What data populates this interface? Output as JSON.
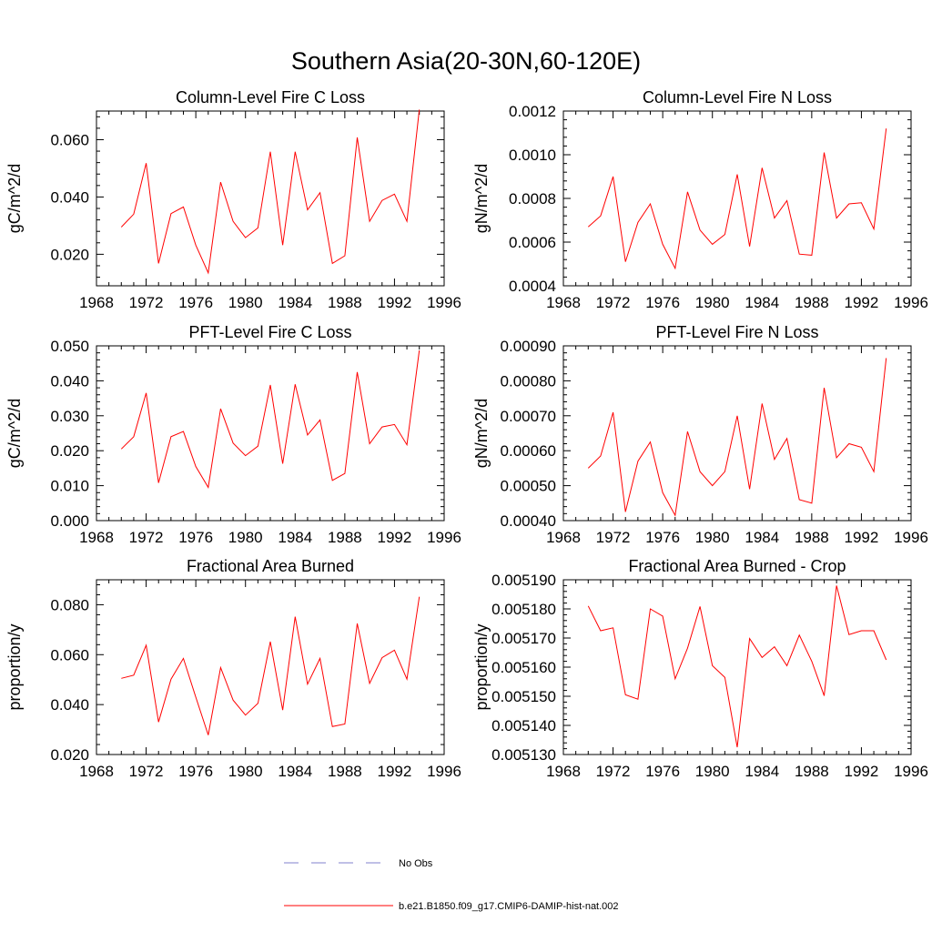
{
  "figure": {
    "title": "Southern Asia(20-30N,60-120E)",
    "colors": {
      "model_line": "#ff0000",
      "obs_line": "#8080cc",
      "axes": "#000000"
    }
  },
  "legend": {
    "entries": [
      {
        "label": "No Obs",
        "style": "dashed",
        "color": "#8080cc"
      },
      {
        "label": "b.e21.B1850.f09_g17.CMIP6-DAMIP-hist-nat.002",
        "style": "solid",
        "color": "#ff0000"
      }
    ]
  },
  "chart_data": [
    {
      "type": "line",
      "title": "Column-Level Fire C Loss",
      "ylabel": "gC/m^2/d",
      "xlim": [
        1968,
        1996
      ],
      "ylim": [
        0.009,
        0.07
      ],
      "xticks": [
        1968,
        1972,
        1976,
        1980,
        1984,
        1988,
        1992,
        1996
      ],
      "yticks": [
        0.02,
        0.04,
        0.06
      ],
      "ytick_labels": [
        "0.020",
        "0.040",
        "0.060"
      ],
      "grid": false,
      "x": [
        1970,
        1971,
        1972,
        1973,
        1974,
        1975,
        1976,
        1977,
        1978,
        1979,
        1980,
        1981,
        1982,
        1983,
        1984,
        1985,
        1986,
        1987,
        1988,
        1989,
        1990,
        1991,
        1992,
        1993,
        1994
      ],
      "series": [
        {
          "values": [
            0.0295,
            0.034,
            0.0518,
            0.0168,
            0.0342,
            0.0365,
            0.0232,
            0.0135,
            0.0452,
            0.0315,
            0.0258,
            0.0292,
            0.0558,
            0.0232,
            0.0558,
            0.0355,
            0.0415,
            0.0168,
            0.0195,
            0.0608,
            0.0315,
            0.0388,
            0.041,
            0.0315,
            0.0705
          ]
        }
      ]
    },
    {
      "type": "line",
      "title": "Column-Level Fire N Loss",
      "ylabel": "gN/m^2/d",
      "xlim": [
        1968,
        1996
      ],
      "ylim": [
        0.0004,
        0.0012
      ],
      "xticks": [
        1968,
        1972,
        1976,
        1980,
        1984,
        1988,
        1992,
        1996
      ],
      "yticks": [
        0.0004,
        0.0006,
        0.0008,
        0.001,
        0.0012
      ],
      "ytick_labels": [
        "0.0004",
        "0.0006",
        "0.0008",
        "0.0010",
        "0.0012"
      ],
      "grid": false,
      "x": [
        1970,
        1971,
        1972,
        1973,
        1974,
        1975,
        1976,
        1977,
        1978,
        1979,
        1980,
        1981,
        1982,
        1983,
        1984,
        1985,
        1986,
        1987,
        1988,
        1989,
        1990,
        1991,
        1992,
        1993,
        1994
      ],
      "series": [
        {
          "values": [
            0.00067,
            0.00072,
            0.0009,
            0.00051,
            0.00069,
            0.000775,
            0.00059,
            0.00048,
            0.00083,
            0.000655,
            0.00059,
            0.000635,
            0.00091,
            0.00058,
            0.00094,
            0.00071,
            0.00079,
            0.000545,
            0.00054,
            0.00101,
            0.00071,
            0.000775,
            0.00078,
            0.00066,
            0.00112
          ]
        }
      ]
    },
    {
      "type": "line",
      "title": "PFT-Level Fire C Loss",
      "ylabel": "gC/m^2/d",
      "xlim": [
        1968,
        1996
      ],
      "ylim": [
        0.0,
        0.05
      ],
      "xticks": [
        1968,
        1972,
        1976,
        1980,
        1984,
        1988,
        1992,
        1996
      ],
      "yticks": [
        0.0,
        0.01,
        0.02,
        0.03,
        0.04,
        0.05
      ],
      "ytick_labels": [
        "0.000",
        "0.010",
        "0.020",
        "0.030",
        "0.040",
        "0.050"
      ],
      "grid": false,
      "x": [
        1970,
        1971,
        1972,
        1973,
        1974,
        1975,
        1976,
        1977,
        1978,
        1979,
        1980,
        1981,
        1982,
        1983,
        1984,
        1985,
        1986,
        1987,
        1988,
        1989,
        1990,
        1991,
        1992,
        1993,
        1994
      ],
      "series": [
        {
          "values": [
            0.0205,
            0.024,
            0.0365,
            0.0108,
            0.024,
            0.0255,
            0.0155,
            0.0095,
            0.032,
            0.0222,
            0.0186,
            0.0213,
            0.0388,
            0.0163,
            0.039,
            0.0245,
            0.0288,
            0.0115,
            0.0135,
            0.0425,
            0.022,
            0.0268,
            0.0275,
            0.0217,
            0.0487
          ]
        }
      ]
    },
    {
      "type": "line",
      "title": "PFT-Level Fire N Loss",
      "ylabel": "gN/m^2/d",
      "xlim": [
        1968,
        1996
      ],
      "ylim": [
        0.0004,
        0.0009
      ],
      "xticks": [
        1968,
        1972,
        1976,
        1980,
        1984,
        1988,
        1992,
        1996
      ],
      "yticks": [
        0.0004,
        0.0005,
        0.0006,
        0.0007,
        0.0008,
        0.0009
      ],
      "ytick_labels": [
        "0.00040",
        "0.00050",
        "0.00060",
        "0.00070",
        "0.00080",
        "0.00090"
      ],
      "grid": false,
      "x": [
        1970,
        1971,
        1972,
        1973,
        1974,
        1975,
        1976,
        1977,
        1978,
        1979,
        1980,
        1981,
        1982,
        1983,
        1984,
        1985,
        1986,
        1987,
        1988,
        1989,
        1990,
        1991,
        1992,
        1993,
        1994
      ],
      "series": [
        {
          "values": [
            0.00055,
            0.000585,
            0.00071,
            0.000425,
            0.00057,
            0.000625,
            0.00048,
            0.000415,
            0.000655,
            0.00054,
            0.0005,
            0.00054,
            0.0007,
            0.00049,
            0.000735,
            0.000575,
            0.000635,
            0.00046,
            0.00045,
            0.00078,
            0.00058,
            0.00062,
            0.00061,
            0.00054,
            0.000865
          ]
        }
      ]
    },
    {
      "type": "line",
      "title": "Fractional Area Burned",
      "ylabel": "proportion/y",
      "xlim": [
        1968,
        1996
      ],
      "ylim": [
        0.02,
        0.09
      ],
      "xticks": [
        1968,
        1972,
        1976,
        1980,
        1984,
        1988,
        1992,
        1996
      ],
      "yticks": [
        0.02,
        0.04,
        0.06,
        0.08
      ],
      "ytick_labels": [
        "0.020",
        "0.040",
        "0.060",
        "0.080"
      ],
      "grid": false,
      "x": [
        1970,
        1971,
        1972,
        1973,
        1974,
        1975,
        1976,
        1977,
        1978,
        1979,
        1980,
        1981,
        1982,
        1983,
        1984,
        1985,
        1986,
        1987,
        1988,
        1989,
        1990,
        1991,
        1992,
        1993,
        1994
      ],
      "series": [
        {
          "values": [
            0.0505,
            0.0518,
            0.0638,
            0.033,
            0.0502,
            0.0585,
            0.043,
            0.0278,
            0.0548,
            0.0418,
            0.0358,
            0.0405,
            0.0652,
            0.0378,
            0.0752,
            0.0482,
            0.0585,
            0.0312,
            0.0322,
            0.0725,
            0.0485,
            0.0588,
            0.0618,
            0.0502,
            0.0832
          ]
        }
      ]
    },
    {
      "type": "line",
      "title": "Fractional Area Burned - Crop",
      "ylabel": "proportion/y",
      "xlim": [
        1968,
        1996
      ],
      "ylim": [
        0.00513,
        0.00519
      ],
      "xticks": [
        1968,
        1972,
        1976,
        1980,
        1984,
        1988,
        1992,
        1996
      ],
      "yticks": [
        0.00513,
        0.00514,
        0.00515,
        0.00516,
        0.00517,
        0.00518,
        0.00519
      ],
      "ytick_labels": [
        "0.005130",
        "0.005140",
        "0.005150",
        "0.005160",
        "0.005170",
        "0.005180",
        "0.005190"
      ],
      "grid": false,
      "x": [
        1970,
        1971,
        1972,
        1973,
        1974,
        1975,
        1976,
        1977,
        1978,
        1979,
        1980,
        1981,
        1982,
        1983,
        1984,
        1985,
        1986,
        1987,
        1988,
        1989,
        1990,
        1991,
        1992,
        1993,
        1994
      ],
      "series": [
        {
          "values": [
            0.005181,
            0.0051725,
            0.0051735,
            0.0051505,
            0.005149,
            0.00518,
            0.0051775,
            0.005156,
            0.0051665,
            0.0051808,
            0.0051605,
            0.0051565,
            0.0051325,
            0.0051698,
            0.0051633,
            0.005167,
            0.0051605,
            0.005171,
            0.005162,
            0.0051502,
            0.005188,
            0.0051712,
            0.0051725,
            0.0051725,
            0.0051625
          ]
        }
      ]
    }
  ]
}
